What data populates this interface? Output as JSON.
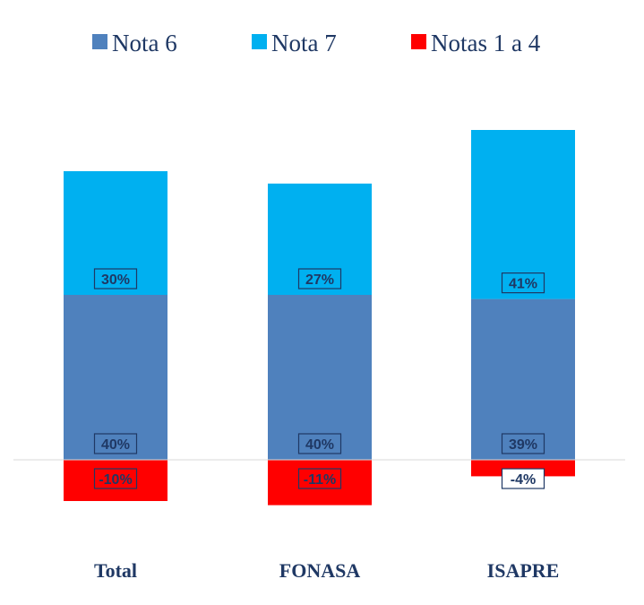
{
  "chart_data": {
    "type": "bar",
    "stacked": true,
    "categories": [
      "Total",
      "FONASA",
      "ISAPRE"
    ],
    "series": [
      {
        "name": "Nota 6",
        "values": [
          40,
          40,
          39
        ],
        "labels": [
          "40%",
          "40%",
          "39%"
        ],
        "color": "#4f81bd"
      },
      {
        "name": "Nota 7",
        "values": [
          30,
          27,
          41
        ],
        "labels": [
          "30%",
          "27%",
          "41%"
        ],
        "color": "#00b0f0"
      },
      {
        "name": "Notas 1 a 4",
        "values": [
          -10,
          -11,
          -4
        ],
        "labels": [
          "-10%",
          "-11%",
          "-4%"
        ],
        "color": "#ff0000"
      }
    ],
    "legend_position": "top",
    "ylim": [
      -15,
      85
    ],
    "grid": false
  }
}
